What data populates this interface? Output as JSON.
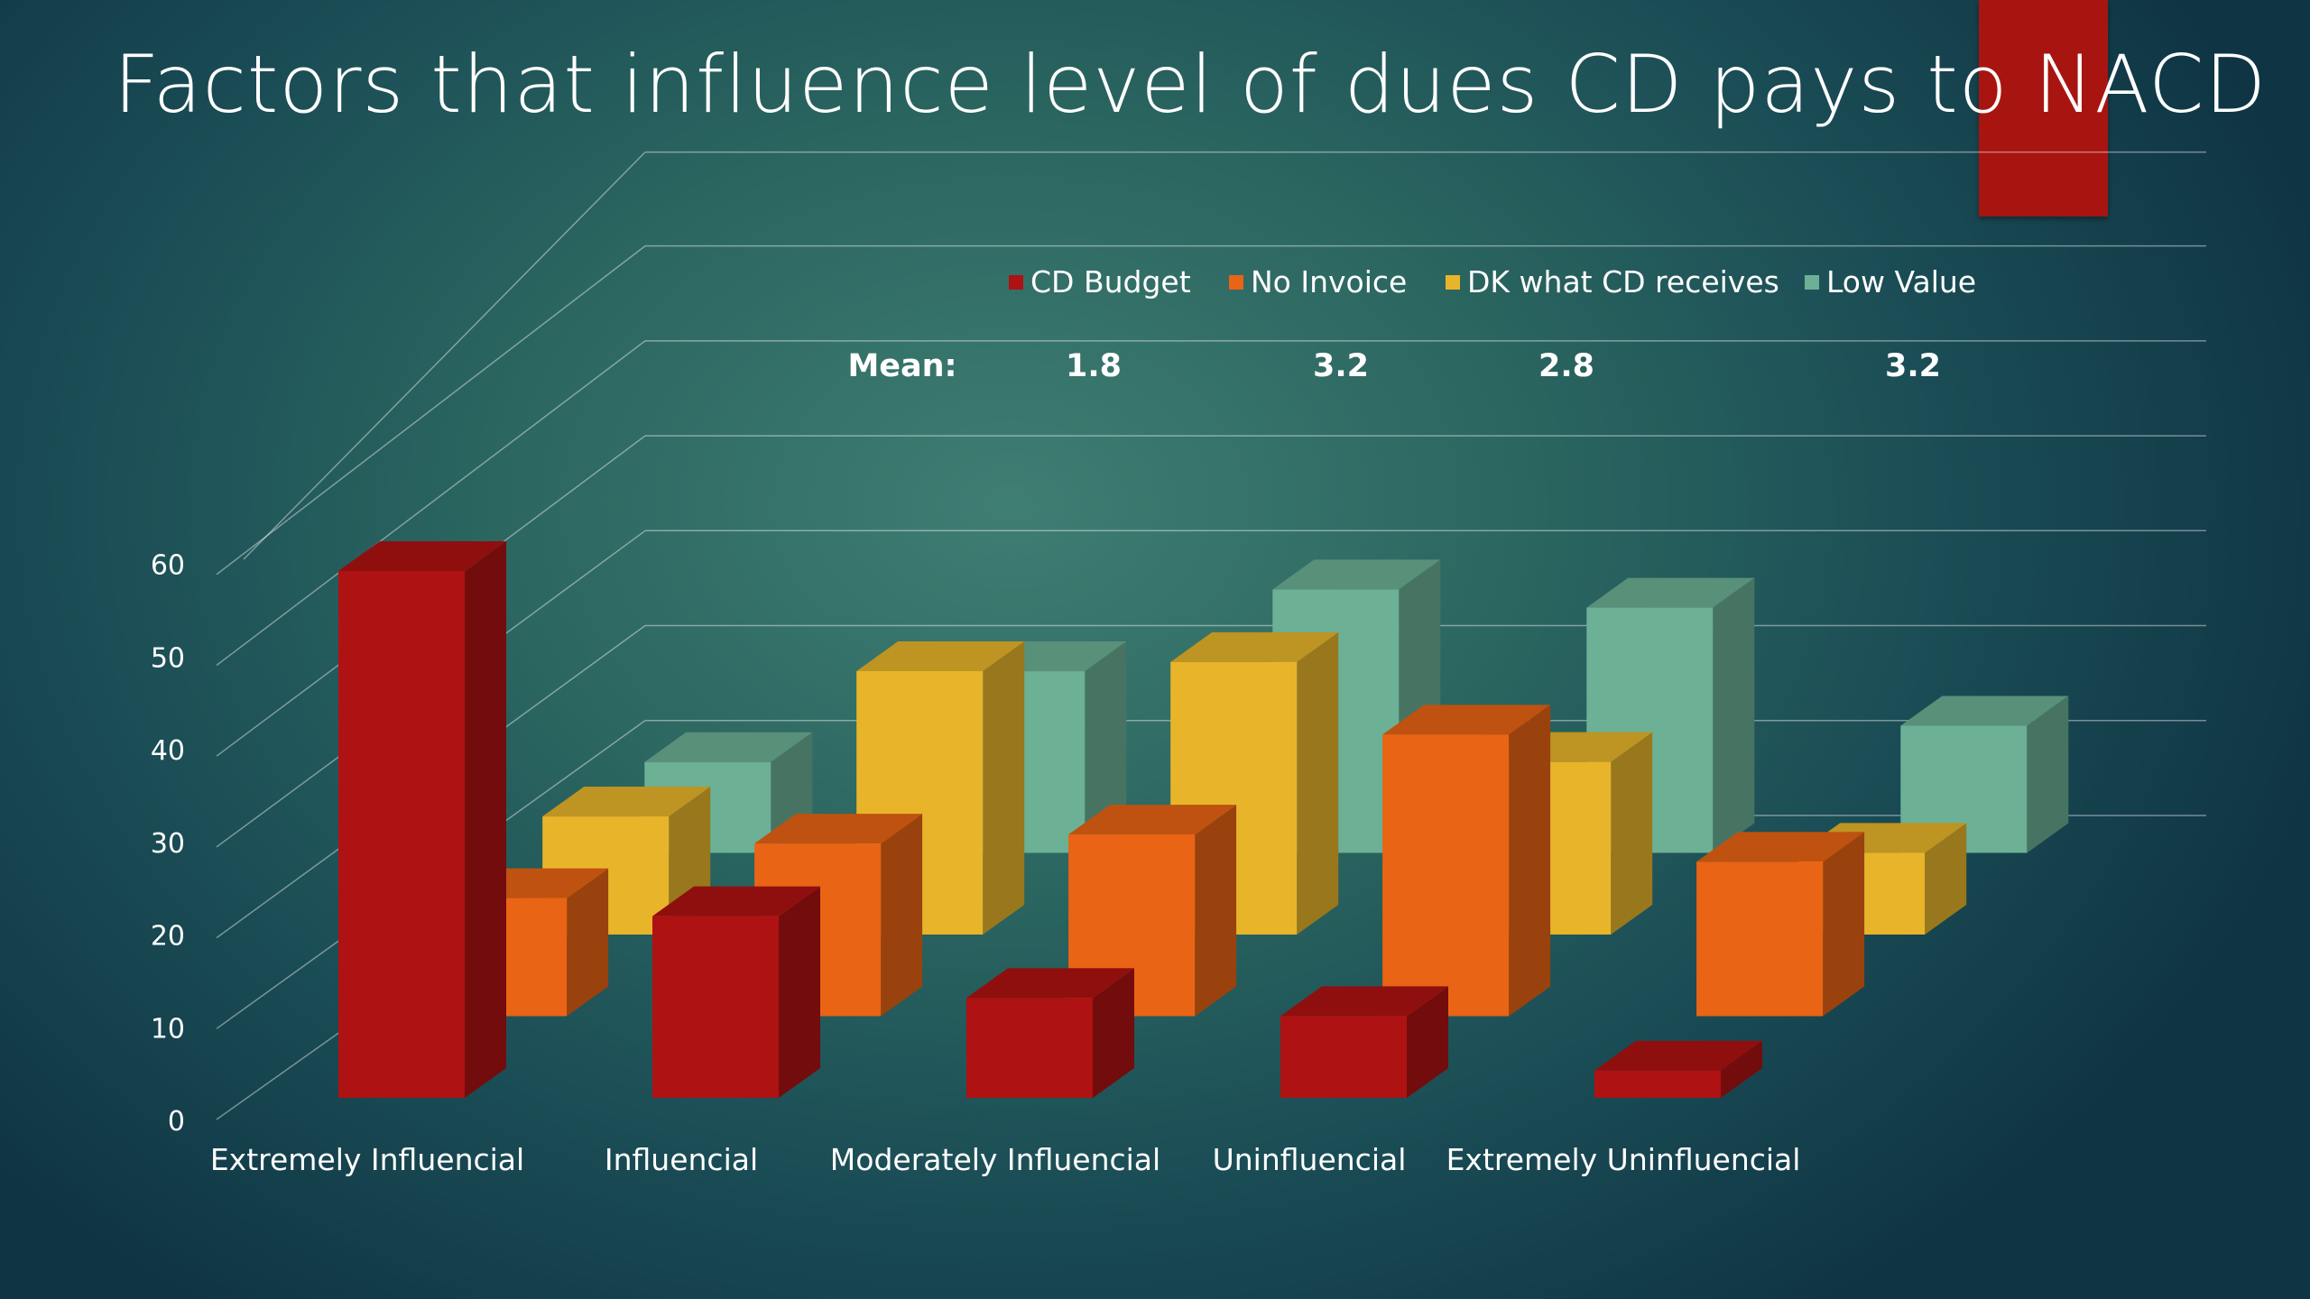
{
  "slide": {
    "title": "Factors that influence level of dues CD pays to NACD"
  },
  "mean_row": {
    "label": "Mean:",
    "values": [
      "1.8",
      "3.2",
      "2.8",
      "3.2"
    ]
  },
  "colors": {
    "cd_budget": "#ae1212",
    "no_invoice": "#e96414",
    "dk_what_cd_receives": "#e8b52a",
    "low_value": "#6cb095",
    "accent_bar": "#a81510"
  },
  "chart_data": {
    "type": "bar",
    "variant": "3d-clustered-column",
    "title": "Factors that influence level of dues CD pays to NACD",
    "categories": [
      "Extremely Influencial",
      "Influencial",
      "Moderately Influencial",
      "Uninfluencial",
      "Extremely Uninfluencial"
    ],
    "series": [
      {
        "name": "CD Budget",
        "color": "#ae1212",
        "values": [
          58,
          20,
          11,
          9,
          3
        ]
      },
      {
        "name": "No Invoice",
        "color": "#e96414",
        "values": [
          13,
          19,
          20,
          31,
          17
        ]
      },
      {
        "name": "DK what CD receives",
        "color": "#e8b52a",
        "values": [
          13,
          29,
          30,
          19,
          9
        ]
      },
      {
        "name": "Low Value",
        "color": "#6cb095",
        "values": [
          10,
          20,
          29,
          27,
          14
        ]
      }
    ],
    "ylim": [
      0,
      60
    ],
    "yticks": [
      0,
      10,
      20,
      30,
      40,
      50,
      60
    ],
    "gridlines": true,
    "legend": "top"
  }
}
